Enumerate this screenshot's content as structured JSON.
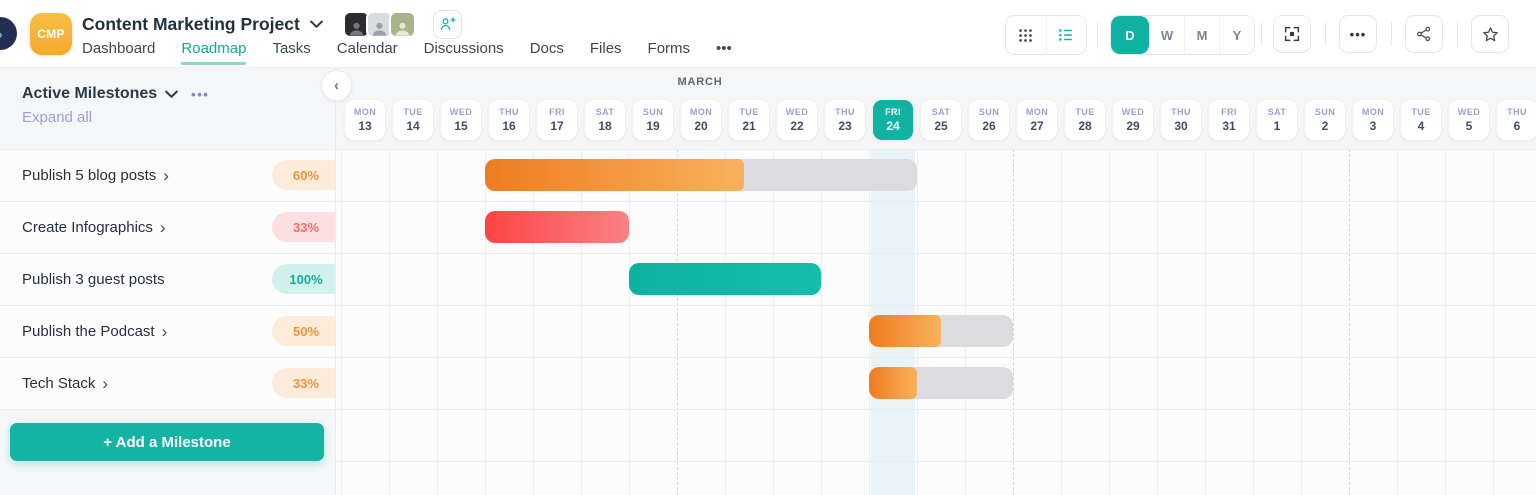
{
  "colors": {
    "accent_teal": "#12b2a2",
    "bar_orange": "#f08126",
    "bar_red": "#fb5658",
    "bar_teal": "#0eb2a0",
    "track_gray": "#dcdce0",
    "today_highlight": "#e8f4f7",
    "logo_amber": "#f3a92e"
  },
  "topbar": {
    "logo": "CMP",
    "title": "Content Marketing Project",
    "nav": [
      {
        "label": "Dashboard"
      },
      {
        "label": "Roadmap",
        "active": true
      },
      {
        "label": "Tasks"
      },
      {
        "label": "Calendar"
      },
      {
        "label": "Discussions"
      },
      {
        "label": "Docs"
      },
      {
        "label": "Files"
      },
      {
        "label": "Forms"
      },
      {
        "label": "•••",
        "name": "more"
      }
    ],
    "avatars": [
      {
        "tone": "#2c2c30",
        "fg": "#77777d"
      },
      {
        "tone": "#d9dbdf",
        "fg": "#9aa0a8"
      },
      {
        "tone": "#a8b489",
        "fg": "#e6ead6"
      }
    ],
    "views": [
      {
        "label": "D",
        "active": true
      },
      {
        "label": "W"
      },
      {
        "label": "M"
      },
      {
        "label": "Y"
      }
    ],
    "more_dots": "•••"
  },
  "sidebar": {
    "title": "Active Milestones",
    "menu_dots": "•••",
    "expand_all": "Expand all",
    "add_milestone": "+ Add a Milestone",
    "milestones": [
      {
        "label": "Publish 5 blog posts",
        "progress_label": "60%",
        "badge": "orange",
        "chevron": true
      },
      {
        "label": "Create Infographics",
        "progress_label": "33%",
        "badge": "red",
        "chevron": true
      },
      {
        "label": "Publish 3 guest posts",
        "progress_label": "100%",
        "badge": "teal",
        "chevron": false
      },
      {
        "label": "Publish the Podcast",
        "progress_label": "50%",
        "badge": "orange",
        "chevron": true
      },
      {
        "label": "Tech Stack",
        "progress_label": "33%",
        "badge": "orange",
        "chevron": true
      }
    ]
  },
  "timeline": {
    "month_label": "MARCH",
    "today_index": 11,
    "days": [
      {
        "dow": "MON",
        "date": "13"
      },
      {
        "dow": "TUE",
        "date": "14"
      },
      {
        "dow": "WED",
        "date": "15"
      },
      {
        "dow": "THU",
        "date": "16"
      },
      {
        "dow": "FRI",
        "date": "17"
      },
      {
        "dow": "SAT",
        "date": "18"
      },
      {
        "dow": "SUN",
        "date": "19"
      },
      {
        "dow": "MON",
        "date": "20"
      },
      {
        "dow": "TUE",
        "date": "21"
      },
      {
        "dow": "WED",
        "date": "22"
      },
      {
        "dow": "THU",
        "date": "23"
      },
      {
        "dow": "FRI",
        "date": "24",
        "today": true
      },
      {
        "dow": "SAT",
        "date": "25"
      },
      {
        "dow": "SUN",
        "date": "26"
      },
      {
        "dow": "MON",
        "date": "27"
      },
      {
        "dow": "TUE",
        "date": "28"
      },
      {
        "dow": "WED",
        "date": "29"
      },
      {
        "dow": "THU",
        "date": "30"
      },
      {
        "dow": "FRI",
        "date": "31"
      },
      {
        "dow": "SAT",
        "date": "1"
      },
      {
        "dow": "SUN",
        "date": "2"
      },
      {
        "dow": "MON",
        "date": "3"
      },
      {
        "dow": "TUE",
        "date": "4"
      },
      {
        "dow": "WED",
        "date": "5"
      },
      {
        "dow": "THU",
        "date": "6"
      }
    ]
  },
  "chart_data": {
    "type": "gantt",
    "rows": [
      {
        "name": "Publish 5 blog posts",
        "start_day": "Mar 16",
        "end_day": "Mar 24",
        "start_index": 3,
        "span_days": 9,
        "progress_pct": 60,
        "fill_fraction": 0.6,
        "color": "orange",
        "show_track": true
      },
      {
        "name": "Create Infographics",
        "start_day": "Mar 16",
        "end_day": "Mar 18",
        "start_index": 3,
        "span_days": 3,
        "progress_pct": 33,
        "fill_fraction": 1,
        "color": "red",
        "show_track": false
      },
      {
        "name": "Publish 3 guest posts",
        "start_day": "Mar 19",
        "end_day": "Mar 22",
        "start_index": 6,
        "span_days": 4,
        "progress_pct": 100,
        "fill_fraction": 1,
        "color": "teal",
        "show_track": false
      },
      {
        "name": "Publish the Podcast",
        "start_day": "Mar 24",
        "end_day": "Mar 26",
        "start_index": 11,
        "span_days": 3,
        "progress_pct": 50,
        "fill_fraction": 0.5,
        "color": "orange",
        "show_track": true
      },
      {
        "name": "Tech Stack",
        "start_day": "Mar 24",
        "end_day": "Mar 26",
        "start_index": 11,
        "span_days": 3,
        "progress_pct": 33,
        "fill_fraction": 0.33,
        "color": "orange",
        "show_track": true
      }
    ]
  }
}
